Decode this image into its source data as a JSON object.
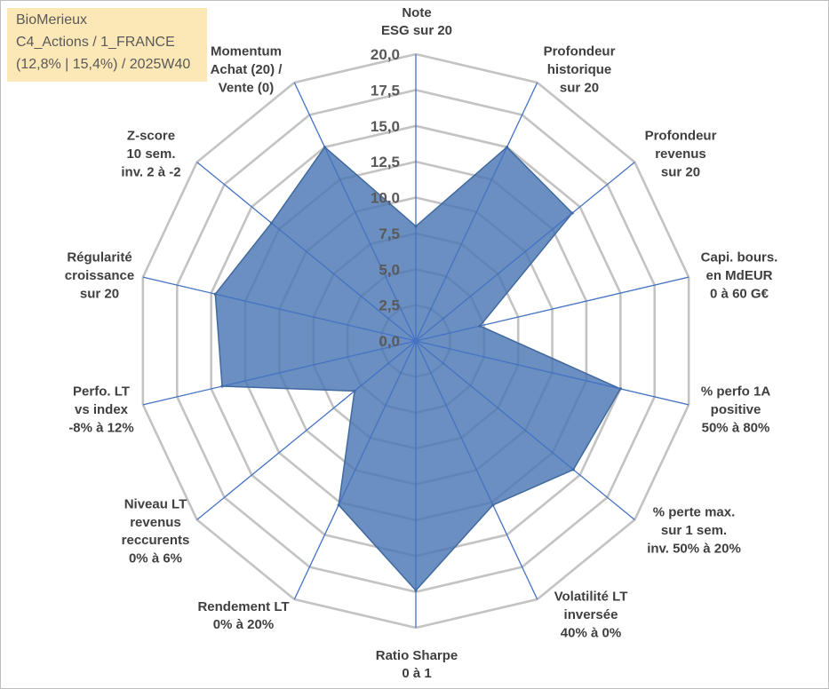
{
  "info_box": {
    "lines": [
      "BioMerieux",
      "C4_Actions / 1_FRANCE",
      "(12,8% | 15,4%) / 2025W40"
    ]
  },
  "chart_data": {
    "type": "radar",
    "categories": [
      [
        "Note",
        "ESG sur 20"
      ],
      [
        "Profondeur",
        "historique",
        "sur 20"
      ],
      [
        "Profondeur",
        "revenus",
        "sur 20"
      ],
      [
        "Capi. bours.",
        "en MdEUR",
        "0 à 60 G€"
      ],
      [
        "% perfo 1A",
        "positive",
        "50% à 80%"
      ],
      [
        "% perte max.",
        "sur 1 sem.",
        "inv. 50% à 20%"
      ],
      [
        "Volatilité LT",
        "inversée",
        "40% à 0%"
      ],
      [
        "Ratio Sharpe",
        "0 à 1"
      ],
      [
        "Rendement LT",
        "0% à 20%"
      ],
      [
        "Niveau LT",
        "revenus",
        "reccurents",
        "0% à 6%"
      ],
      [
        "Perfo. LT",
        "vs index",
        "-8% à 12%"
      ],
      [
        "Régularité",
        "croissance",
        "sur 20"
      ],
      [
        "Z-score",
        "10 sem.",
        "inv. 2 à -2"
      ],
      [
        "Momentum",
        "Achat (20) /",
        "Vente (0)"
      ]
    ],
    "values": [
      8,
      15,
      14.3,
      4.7,
      15,
      14.4,
      12.7,
      17.4,
      12.7,
      5.6,
      14.2,
      14.7,
      13.2,
      15
    ],
    "rlim": [
      0,
      20
    ],
    "ticks": [
      0,
      2.5,
      5,
      7.5,
      10,
      12.5,
      15,
      17.5,
      20
    ],
    "tick_labels": [
      "0,0",
      "2,5",
      "5,0",
      "7,5",
      "10,0",
      "12,5",
      "15,0",
      "17,5",
      "20,0"
    ],
    "grid": true
  },
  "colors": {
    "series_fill": "#4a76b2",
    "series_stroke": "#40699f",
    "axis": "#4472c4",
    "grid": "#c3c3c3",
    "info_box": "#fce8b6"
  }
}
